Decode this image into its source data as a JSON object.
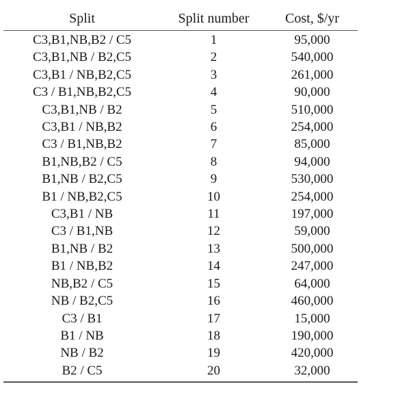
{
  "table": {
    "headers": {
      "split": "Split",
      "split_number": "Split number",
      "cost": "Cost, $/yr"
    },
    "rows": [
      {
        "split": "C3,B1,NB,B2 / C5",
        "number": "1",
        "cost": "95,000"
      },
      {
        "split": "C3,B1,NB / B2,C5",
        "number": "2",
        "cost": "540,000"
      },
      {
        "split": "C3,B1 / NB,B2,C5",
        "number": "3",
        "cost": "261,000"
      },
      {
        "split": "C3 / B1,NB,B2,C5",
        "number": "4",
        "cost": "90,000"
      },
      {
        "split": "C3,B1,NB / B2",
        "number": "5",
        "cost": "510,000"
      },
      {
        "split": "C3,B1 / NB,B2",
        "number": "6",
        "cost": "254,000"
      },
      {
        "split": "C3 / B1,NB,B2",
        "number": "7",
        "cost": "85,000"
      },
      {
        "split": "B1,NB,B2 / C5",
        "number": "8",
        "cost": "94,000"
      },
      {
        "split": "B1,NB / B2,C5",
        "number": "9",
        "cost": "530,000"
      },
      {
        "split": "B1 / NB,B2,C5",
        "number": "10",
        "cost": "254,000"
      },
      {
        "split": "C3,B1 / NB",
        "number": "11",
        "cost": "197,000"
      },
      {
        "split": "C3 / B1,NB",
        "number": "12",
        "cost": "59,000"
      },
      {
        "split": "B1,NB / B2",
        "number": "13",
        "cost": "500,000"
      },
      {
        "split": "B1 / NB,B2",
        "number": "14",
        "cost": "247,000"
      },
      {
        "split": "NB,B2 / C5",
        "number": "15",
        "cost": "64,000"
      },
      {
        "split": "NB / B2,C5",
        "number": "16",
        "cost": "460,000"
      },
      {
        "split": "C3 / B1",
        "number": "17",
        "cost": "15,000"
      },
      {
        "split": "B1 / NB",
        "number": "18",
        "cost": "190,000"
      },
      {
        "split": "NB / B2",
        "number": "19",
        "cost": "420,000"
      },
      {
        "split": "B2 / C5",
        "number": "20",
        "cost": "32,000"
      }
    ]
  }
}
